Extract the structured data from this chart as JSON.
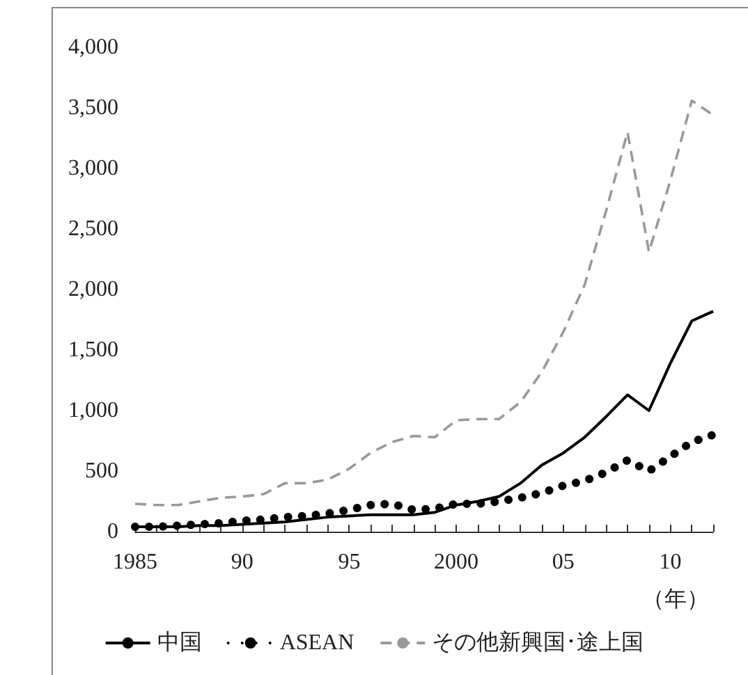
{
  "chart_data": {
    "type": "line",
    "categories": [
      "1985",
      null,
      null,
      null,
      null,
      "90",
      null,
      null,
      null,
      null,
      "95",
      null,
      null,
      null,
      null,
      "2000",
      null,
      null,
      null,
      null,
      "05",
      null,
      null,
      null,
      null,
      "10",
      null,
      null
    ],
    "series": [
      {
        "name": "中国",
        "color": "#000000",
        "line_style": "solid",
        "values": [
          40,
          40,
          40,
          50,
          50,
          60,
          70,
          80,
          100,
          120,
          130,
          140,
          140,
          140,
          160,
          220,
          250,
          290,
          400,
          550,
          650,
          780,
          950,
          1130,
          1000,
          1390,
          1740,
          1820
        ]
      },
      {
        "name": "ASEAN",
        "color": "#000000",
        "line_style": "dotted",
        "values": [
          40,
          40,
          50,
          60,
          70,
          90,
          100,
          120,
          130,
          150,
          180,
          220,
          230,
          180,
          190,
          230,
          230,
          250,
          280,
          320,
          380,
          420,
          490,
          590,
          500,
          620,
          740,
          800
        ]
      },
      {
        "name": "その他新興国･途上国",
        "color": "#999999",
        "line_style": "dashed",
        "values": [
          230,
          220,
          220,
          250,
          280,
          290,
          310,
          400,
          400,
          430,
          520,
          650,
          740,
          790,
          780,
          920,
          930,
          930,
          1070,
          1320,
          1650,
          2040,
          2650,
          3300,
          2310,
          2900,
          3560,
          3440
        ]
      }
    ],
    "xlabel": "（年）",
    "ylim": [
      0,
      4000
    ],
    "yticks": [
      {
        "value": 0,
        "label": "0"
      },
      {
        "value": 500,
        "label": "500"
      },
      {
        "value": 1000,
        "label": "1,000"
      },
      {
        "value": 1500,
        "label": "1,500"
      },
      {
        "value": 2000,
        "label": "2,000"
      },
      {
        "value": 2500,
        "label": "2,500"
      },
      {
        "value": 3000,
        "label": "3,000"
      },
      {
        "value": 3500,
        "label": "3,500"
      },
      {
        "value": 4000,
        "label": "4,000"
      }
    ],
    "grid": false,
    "legend": "bottom",
    "marker": "none"
  }
}
